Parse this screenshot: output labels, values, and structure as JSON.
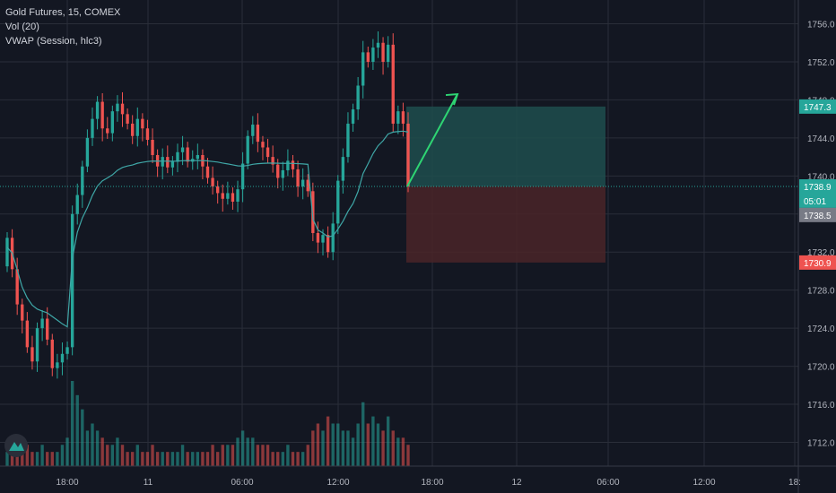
{
  "legend": {
    "symbol_line": "Gold Futures, 15, COMEX",
    "volume_line": "Vol (20)",
    "vwap_line": "VWAP (Session, hlc3)"
  },
  "colors": {
    "background": "#131722",
    "grid": "#2a2e39",
    "up": "#26a69a",
    "down": "#ef5350",
    "vwap": "#3fa7a7",
    "target_zone": "#1f4e4d",
    "stop_zone": "#4a2428",
    "arrow": "#2ed573"
  },
  "chart_data": {
    "type": "candlestick",
    "title": "Gold Futures, 15, COMEX",
    "y_ticks": [
      1756.0,
      1752.0,
      1748.0,
      1744.0,
      1740.0,
      1736.0,
      1732.0,
      1728.0,
      1724.0,
      1720.0,
      1716.0,
      1712.0
    ],
    "y_tick_labels": [
      "1756.0",
      "1752.0",
      "1748.0",
      "1744.0",
      "1740.0",
      "1736.0",
      "1732.0",
      "1728.0",
      "1724.0",
      "1720.0",
      "1716.0",
      "1712.0"
    ],
    "x_tick_labels": [
      "18:00",
      "11",
      "06:00",
      "12:00",
      "18:00",
      "12",
      "06:00",
      "12:00",
      "18:"
    ],
    "ylim": [
      1709.5,
      1758.5
    ],
    "grid": true,
    "overlays": [
      "Vol (20)",
      "VWAP (Session, hlc3)"
    ],
    "price_tags": [
      {
        "label": "1747.3",
        "value": 1747.3,
        "color": "#26a69a"
      },
      {
        "label": "1738.9",
        "value": 1738.9,
        "color": "#26a69a"
      },
      {
        "label": "05:01",
        "value": 1737.4,
        "color": "#26a69a"
      },
      {
        "label": "1738.5",
        "value": 1735.9,
        "color": "#787b86"
      },
      {
        "label": "1730.9",
        "value": 1730.9,
        "color": "#ef5350"
      }
    ],
    "position": {
      "side": "long",
      "entry": 1738.9,
      "target": 1747.3,
      "stop": 1730.9
    },
    "candles_close": [
      1733.5,
      1730.2,
      1726.5,
      1724.8,
      1722.0,
      1720.5,
      1724.0,
      1725.0,
      1722.8,
      1719.8,
      1720.4,
      1721.3,
      1722.0,
      1736.0,
      1738.0,
      1741.0,
      1744.0,
      1746.0,
      1747.8,
      1745.0,
      1744.5,
      1746.8,
      1747.6,
      1746.5,
      1745.5,
      1744.2,
      1746.0,
      1745.0,
      1743.8,
      1742.2,
      1741.0,
      1742.0,
      1740.9,
      1741.5,
      1742.5,
      1743.0,
      1741.5,
      1741.8,
      1742.2,
      1741.0,
      1739.8,
      1738.9,
      1738.2,
      1737.6,
      1738.2,
      1737.3,
      1738.6,
      1741.3,
      1744.2,
      1745.4,
      1743.6,
      1743.0,
      1742.0,
      1741.2,
      1739.8,
      1740.6,
      1741.6,
      1740.7,
      1738.9,
      1739.6,
      1738.4,
      1734.0,
      1733.0,
      1733.8,
      1732.0,
      1735.0,
      1739.5,
      1742.0,
      1745.5,
      1747.0,
      1749.5,
      1753.0,
      1752.0,
      1753.5,
      1754.0,
      1752.0,
      1753.8,
      1745.5,
      1746.8,
      1745.5,
      1738.9
    ],
    "candles_open": [
      1730.5,
      1733.5,
      1730.2,
      1726.5,
      1724.8,
      1722.0,
      1720.5,
      1724.0,
      1725.0,
      1722.8,
      1719.8,
      1720.4,
      1721.3,
      1722.0,
      1736.0,
      1738.0,
      1741.0,
      1744.0,
      1746.0,
      1747.8,
      1745.0,
      1744.5,
      1746.8,
      1747.6,
      1746.5,
      1745.5,
      1744.2,
      1746.0,
      1745.0,
      1743.8,
      1742.2,
      1741.0,
      1742.0,
      1740.9,
      1741.5,
      1742.5,
      1743.0,
      1741.5,
      1741.8,
      1742.2,
      1741.0,
      1739.8,
      1738.9,
      1738.2,
      1737.6,
      1738.2,
      1737.3,
      1738.6,
      1741.3,
      1744.2,
      1745.4,
      1743.6,
      1743.0,
      1742.0,
      1741.2,
      1739.8,
      1740.6,
      1741.6,
      1740.7,
      1738.9,
      1739.6,
      1738.4,
      1734.0,
      1733.0,
      1733.8,
      1732.0,
      1735.0,
      1739.5,
      1742.0,
      1745.5,
      1747.0,
      1749.5,
      1753.0,
      1752.0,
      1753.5,
      1754.0,
      1752.0,
      1753.8,
      1745.5,
      1746.8,
      1745.5
    ],
    "volume": [
      2,
      2,
      3,
      4,
      3,
      2,
      2,
      3,
      2,
      2,
      2,
      3,
      4,
      12,
      10,
      8,
      5,
      6,
      5,
      4,
      3,
      3,
      4,
      3,
      2,
      2,
      3,
      2,
      2,
      3,
      2,
      2,
      2,
      2,
      2,
      3,
      2,
      2,
      2,
      2,
      2,
      3,
      2,
      3,
      3,
      3,
      4,
      5,
      4,
      4,
      3,
      3,
      3,
      2,
      2,
      2,
      3,
      2,
      2,
      2,
      3,
      5,
      6,
      5,
      7,
      6,
      6,
      5,
      5,
      4,
      6,
      9,
      6,
      7,
      6,
      5,
      7,
      5,
      4,
      4,
      3
    ]
  }
}
